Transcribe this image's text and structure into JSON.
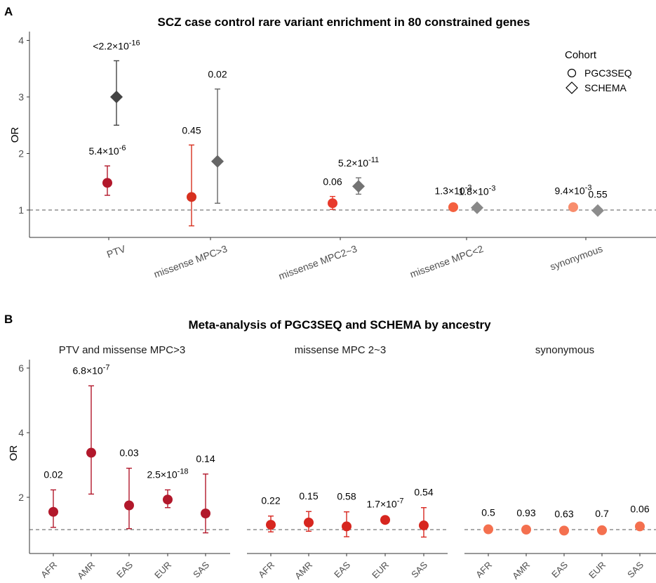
{
  "panel_a_label": "A",
  "panel_b_label": "B",
  "chart_data": [
    {
      "type": "scatter",
      "title": "SCZ case control rare variant enrichment in 80 constrained genes",
      "xlabel": "",
      "ylabel": "OR",
      "ylim": [
        0.55,
        4.2
      ],
      "yticks": [
        1,
        2,
        3,
        4
      ],
      "reference_line": 1,
      "categories": [
        "PTV",
        "missense MPC>3",
        "missense MPC2~3",
        "missense MPC<2",
        "synonymous"
      ],
      "legend": {
        "title": "Cohort",
        "position": "top-right",
        "entries": [
          {
            "label": "PGC3SEQ",
            "shape": "circle"
          },
          {
            "label": "SCHEMA",
            "shape": "diamond"
          }
        ]
      },
      "series": [
        {
          "name": "PGC3SEQ",
          "shape": "circle",
          "values": [
            1.48,
            1.23,
            1.12,
            1.05,
            1.05
          ],
          "lower": [
            1.26,
            0.72,
            1.01,
            1.02,
            1.02
          ],
          "upper": [
            1.78,
            2.15,
            1.24,
            1.08,
            1.08
          ],
          "colors": [
            "#b2182b",
            "#d7301f",
            "#e8392b",
            "#f4603f",
            "#f88d6d"
          ],
          "pvalues": [
            {
              "mantissa": "5.4",
              "exp": "-6"
            },
            {
              "mantissa": "0.45",
              "exp": ""
            },
            {
              "mantissa": "0.06",
              "exp": ""
            },
            {
              "mantissa": "1.3",
              "exp": "-3"
            },
            {
              "mantissa": "9.4",
              "exp": "-3"
            }
          ]
        },
        {
          "name": "SCHEMA",
          "shape": "diamond",
          "values": [
            3.0,
            1.86,
            1.42,
            1.04,
            0.99
          ],
          "lower": [
            2.5,
            1.12,
            1.28,
            1.01,
            0.97
          ],
          "upper": [
            3.64,
            3.14,
            1.57,
            1.07,
            1.02
          ],
          "colors": [
            "#444444",
            "#666666",
            "#737373",
            "#888888",
            "#8c8c8c"
          ],
          "pvalues": [
            {
              "mantissa": "<2.2",
              "exp": "-16"
            },
            {
              "mantissa": "0.02",
              "exp": ""
            },
            {
              "mantissa": "5.2",
              "exp": "-11"
            },
            {
              "mantissa": "1.8",
              "exp": "-3"
            },
            {
              "mantissa": "0.55",
              "exp": ""
            }
          ]
        }
      ]
    },
    {
      "type": "scatter",
      "title": "Meta-analysis of PGC3SEQ and SCHEMA by ancestry",
      "ylabel": "OR",
      "ylim": [
        0.3,
        6.2
      ],
      "yticks": [
        2,
        4,
        6
      ],
      "reference_line": 1,
      "categories": [
        "AFR",
        "AMR",
        "EAS",
        "EUR",
        "SAS"
      ],
      "facets": [
        {
          "name": "PTV and missense MPC>3",
          "color": "#b2182b",
          "values": [
            1.55,
            3.38,
            1.75,
            1.93,
            1.5
          ],
          "lower": [
            1.07,
            2.1,
            1.03,
            1.68,
            0.9
          ],
          "upper": [
            2.23,
            5.45,
            2.9,
            2.23,
            2.72
          ],
          "pvalues": [
            {
              "mantissa": "0.02",
              "exp": ""
            },
            {
              "mantissa": "6.8",
              "exp": "-7"
            },
            {
              "mantissa": "0.03",
              "exp": ""
            },
            {
              "mantissa": "2.5",
              "exp": "-18"
            },
            {
              "mantissa": "0.14",
              "exp": ""
            }
          ]
        },
        {
          "name": "missense MPC 2~3",
          "color": "#d7261f",
          "values": [
            1.15,
            1.22,
            1.1,
            1.3,
            1.13
          ],
          "lower": [
            0.93,
            0.95,
            0.78,
            1.28,
            0.77
          ],
          "upper": [
            1.42,
            1.56,
            1.55,
            1.32,
            1.68
          ],
          "pvalues": [
            {
              "mantissa": "0.22",
              "exp": ""
            },
            {
              "mantissa": "0.15",
              "exp": ""
            },
            {
              "mantissa": "0.58",
              "exp": ""
            },
            {
              "mantissa": "1.7",
              "exp": "-7"
            },
            {
              "mantissa": "0.54",
              "exp": ""
            }
          ]
        },
        {
          "name": "synonymous",
          "color": "#f4704f",
          "values": [
            1.01,
            1.0,
            0.97,
            0.98,
            1.1
          ],
          "lower": [
            0.97,
            0.96,
            0.93,
            0.94,
            1.04
          ],
          "upper": [
            1.05,
            1.04,
            1.01,
            1.02,
            1.16
          ],
          "pvalues": [
            {
              "mantissa": "0.5",
              "exp": ""
            },
            {
              "mantissa": "0.93",
              "exp": ""
            },
            {
              "mantissa": "0.63",
              "exp": ""
            },
            {
              "mantissa": "0.7",
              "exp": ""
            },
            {
              "mantissa": "0.06",
              "exp": ""
            }
          ]
        }
      ]
    }
  ]
}
